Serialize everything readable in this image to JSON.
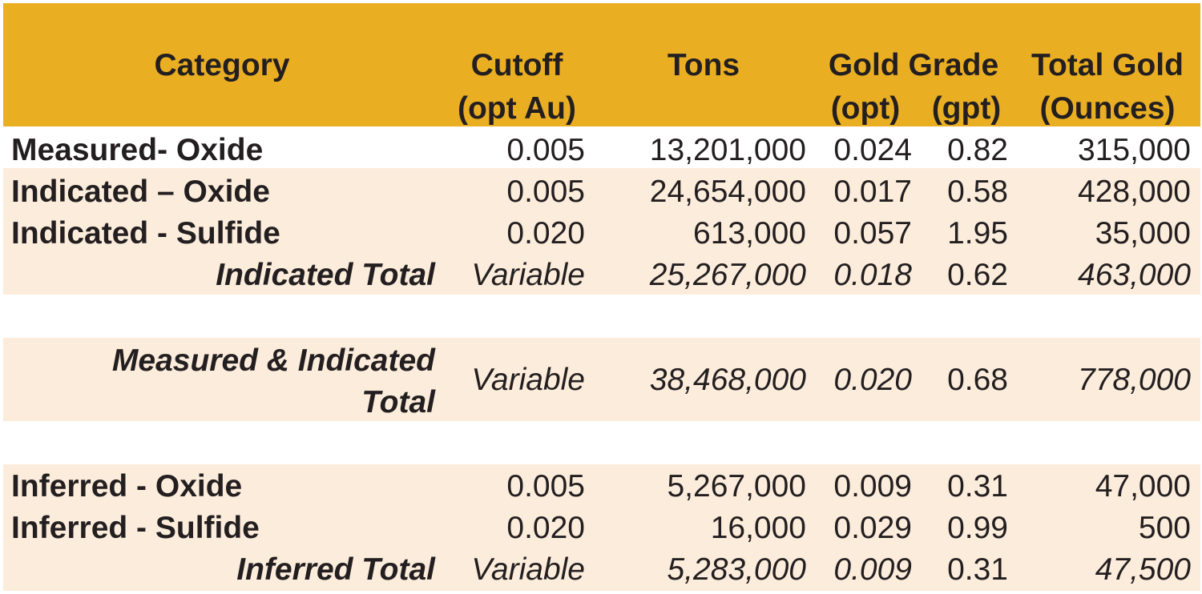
{
  "header": {
    "category": "Category",
    "cutoff_line1": "Cutoff",
    "cutoff_line2": "(opt Au)",
    "tons": "Tons",
    "gold_grade": "Gold Grade",
    "grade_opt": "(opt)",
    "grade_gpt": "(gpt)",
    "total_gold_line1": "Total Gold",
    "total_gold_line2": "(Ounces)"
  },
  "rows": [
    {
      "category": "Measured- Oxide",
      "cutoff": "0.005",
      "tons": "13,201,000",
      "opt": "0.024",
      "gpt": "0.82",
      "ounces": "315,000"
    },
    {
      "category": "Indicated – Oxide",
      "cutoff": "0.005",
      "tons": "24,654,000",
      "opt": "0.017",
      "gpt": "0.58",
      "ounces": "428,000"
    },
    {
      "category": "Indicated - Sulfide",
      "cutoff": "0.020",
      "tons": "613,000",
      "opt": "0.057",
      "gpt": "1.95",
      "ounces": "35,000"
    },
    {
      "category": "Indicated Total",
      "cutoff": "Variable",
      "tons": "25,267,000",
      "opt": "0.018",
      "gpt": "0.62",
      "ounces": "463,000"
    },
    {
      "category_line1": "Measured & Indicated",
      "category_line2": "Total",
      "cutoff": "Variable",
      "tons": "38,468,000",
      "opt": "0.020",
      "gpt": "0.68",
      "ounces": "778,000"
    },
    {
      "category": "Inferred - Oxide",
      "cutoff": "0.005",
      "tons": "5,267,000",
      "opt": "0.009",
      "gpt": "0.31",
      "ounces": "47,000"
    },
    {
      "category": "Inferred - Sulfide",
      "cutoff": "0.020",
      "tons": "16,000",
      "opt": "0.029",
      "gpt": "0.99",
      "ounces": "500"
    },
    {
      "category": "Inferred Total",
      "cutoff": "Variable",
      "tons": "5,283,000",
      "opt": "0.009",
      "gpt": "0.31",
      "ounces": "47,500"
    }
  ],
  "colors": {
    "header_bg": "#eaae23",
    "band_bg": "#fcecdb",
    "text": "#231f20"
  }
}
